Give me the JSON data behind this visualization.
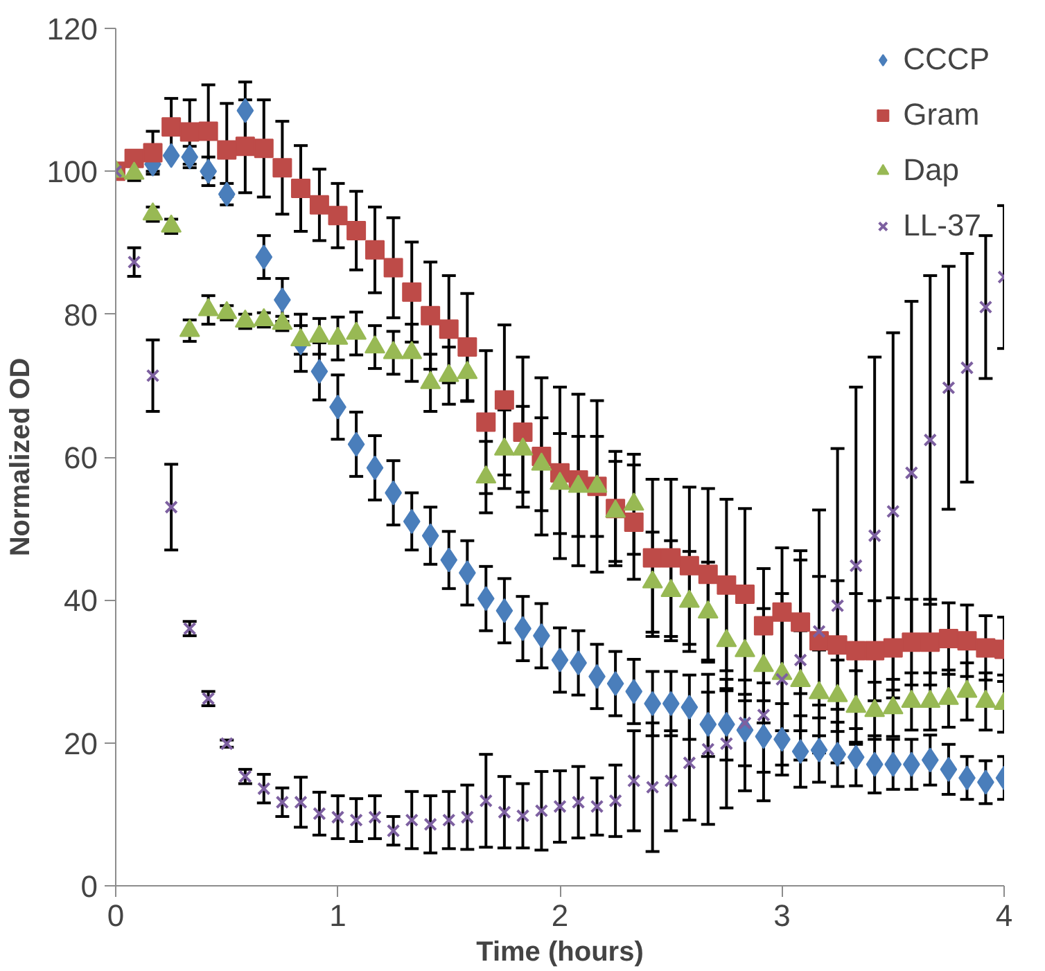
{
  "chart_data": {
    "type": "scatter",
    "xlabel": "Time (hours)",
    "ylabel": "Normalized OD",
    "x": [
      0,
      0.083,
      0.167,
      0.25,
      0.333,
      0.417,
      0.5,
      0.583,
      0.667,
      0.75,
      0.833,
      0.917,
      1,
      1.083,
      1.167,
      1.25,
      1.333,
      1.417,
      1.5,
      1.583,
      1.667,
      1.75,
      1.833,
      1.917,
      2,
      2.083,
      2.167,
      2.25,
      2.333,
      2.417,
      2.5,
      2.583,
      2.667,
      2.75,
      2.833,
      2.917,
      3,
      3.083,
      3.167,
      3.25,
      3.333,
      3.417,
      3.5,
      3.583,
      3.667,
      3.75,
      3.833,
      3.917,
      4
    ],
    "xlim": [
      0,
      4
    ],
    "xticks": [
      0,
      1,
      2,
      3,
      4
    ],
    "ylim": [
      0,
      120
    ],
    "yticks": [
      0,
      20,
      40,
      60,
      80,
      100,
      120
    ],
    "grid": false,
    "legend": "top right",
    "series": [
      {
        "name": "CCCP",
        "color": "#4a7ebb",
        "marker": "diamond",
        "values": [
          null,
          null,
          101,
          102.2,
          102,
          100,
          96.8,
          108.5,
          88,
          82,
          76,
          72,
          67,
          61.8,
          58.5,
          55,
          51,
          49,
          45.6,
          43.8,
          40.2,
          38.5,
          36,
          35,
          31.6,
          31.2,
          29.3,
          28.3,
          27.2,
          25.5,
          25.5,
          25,
          22.6,
          22.6,
          21.8,
          20.9,
          20.5,
          18.8,
          19,
          18.4,
          18,
          17,
          17,
          17,
          17.6,
          16.3,
          15.1,
          14.5,
          15.1
        ],
        "errors": [
          null,
          null,
          1,
          null,
          1.5,
          2,
          1.5,
          4,
          3,
          3,
          4,
          4,
          4.5,
          4.5,
          4.5,
          4.5,
          4,
          4,
          4,
          4.5,
          4.5,
          4.5,
          4.5,
          4.5,
          4.5,
          4.5,
          4.5,
          4.5,
          4.5,
          4.5,
          4.5,
          4.5,
          4.5,
          5,
          5,
          5,
          5,
          5,
          4.5,
          4.5,
          4,
          4,
          3.5,
          3.5,
          3.5,
          3.5,
          3,
          3,
          3
        ]
      },
      {
        "name": "Gram",
        "color": "#be4b48",
        "marker": "square",
        "values": [
          100,
          101.8,
          102.6,
          106.2,
          105.5,
          105.6,
          103,
          103.5,
          103.2,
          100.5,
          97.6,
          95.3,
          93.8,
          91.7,
          89,
          86.5,
          83.1,
          79.8,
          77.9,
          75.4,
          64.9,
          68,
          63.5,
          60.1,
          57.8,
          56.8,
          55.9,
          52.8,
          50.9,
          45.9,
          45.9,
          44.8,
          43.6,
          42.1,
          40.8,
          36.4,
          38.3,
          36.9,
          34.3,
          33.7,
          32.9,
          32.9,
          33.3,
          34.1,
          34.1,
          34.6,
          34.3,
          33.3,
          33.1
        ],
        "errors": [
          0.5,
          null,
          3,
          4,
          4.5,
          6.5,
          6.5,
          6.5,
          6.8,
          6.5,
          6,
          5,
          4.5,
          5.5,
          6,
          7,
          7,
          7.5,
          7.5,
          7.5,
          10,
          10.5,
          10.5,
          11,
          12,
          12,
          12,
          8,
          8,
          11,
          11,
          11,
          12,
          12,
          12,
          8,
          9,
          10,
          9,
          9,
          8,
          7,
          7,
          6,
          6,
          5,
          5,
          4.5,
          4.5
        ]
      },
      {
        "name": "Dap",
        "color": "#98b954",
        "marker": "triangle",
        "values": [
          100,
          99.7,
          94,
          92.3,
          77.7,
          80.6,
          80.2,
          79,
          79.2,
          78.7,
          76.4,
          76.9,
          76.6,
          77.3,
          75.4,
          74.6,
          74.6,
          70.4,
          71.4,
          71.8,
          57.2,
          61.1,
          61.1,
          59,
          56.3,
          55.9,
          55.9,
          52.4,
          53.4,
          42.5,
          41.3,
          39.8,
          38.3,
          34.3,
          32.9,
          30.8,
          29.7,
          28.7,
          27,
          26.6,
          25.1,
          24.5,
          24.9,
          25.8,
          25.8,
          26.2,
          27.2,
          25.8,
          25.5
        ],
        "errors": [
          0.5,
          1,
          1,
          1,
          1.5,
          2,
          1,
          1,
          1,
          1,
          2,
          2.5,
          3,
          3,
          3,
          3,
          4,
          4,
          4,
          4,
          5,
          5.5,
          6,
          6.5,
          7,
          7,
          7,
          7,
          7,
          7,
          7,
          7,
          7,
          7,
          7,
          8,
          8,
          7,
          6,
          5,
          5,
          4,
          4,
          4,
          4,
          4,
          4,
          4,
          4
        ]
      },
      {
        "name": "LL-37",
        "color": "#7d60a0",
        "marker": "cross",
        "values": [
          100,
          87.3,
          71.4,
          53,
          36,
          26.2,
          19.9,
          15.3,
          13.6,
          11.7,
          11.7,
          10.1,
          9.6,
          9.2,
          9.6,
          7.7,
          9.2,
          8.6,
          9.2,
          9.6,
          11.9,
          10.3,
          9.8,
          10.5,
          11.1,
          11.7,
          11.1,
          11.9,
          14.7,
          13.8,
          14.7,
          17.2,
          19.1,
          19.9,
          22.8,
          23.9,
          28.9,
          31.6,
          35.6,
          39.2,
          44.8,
          49,
          52.4,
          57.8,
          62.4,
          69.7,
          72.5,
          81,
          85.2
        ],
        "errors": [
          0.5,
          2,
          5,
          6,
          1,
          1,
          0.5,
          1,
          2,
          2,
          3.5,
          3,
          3,
          3,
          3,
          2,
          4,
          4,
          4,
          4.5,
          6.5,
          5,
          4.5,
          5.5,
          5,
          5,
          4,
          5,
          7,
          9,
          7,
          8,
          10.5,
          9,
          9.5,
          12,
          12,
          14,
          17,
          22,
          25,
          25,
          25,
          24,
          23,
          17,
          16,
          10,
          10
        ]
      }
    ]
  }
}
